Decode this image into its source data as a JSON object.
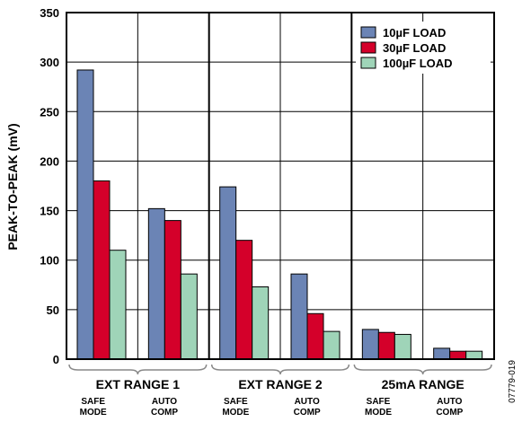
{
  "chart_data": {
    "type": "bar",
    "ylabel": "PEAK-TO-PEAK (mV)",
    "xlabel": "",
    "ylim": [
      0,
      350
    ],
    "y_ticks": [
      0,
      50,
      100,
      150,
      200,
      250,
      300,
      350
    ],
    "grid": true,
    "legend_position": "top-right",
    "groups": [
      {
        "label": "EXT RANGE 1",
        "subgroups": [
          "SAFE\nMODE",
          "AUTO\nCOMP"
        ]
      },
      {
        "label": "EXT RANGE 2",
        "subgroups": [
          "SAFE\nMODE",
          "AUTO\nCOMP"
        ]
      },
      {
        "label": "25mA RANGE",
        "subgroups": [
          "SAFE\nMODE",
          "AUTO\nCOMP"
        ]
      }
    ],
    "categories": [
      "EXT RANGE 1 SAFE MODE",
      "EXT RANGE 1 AUTO COMP",
      "EXT RANGE 2 SAFE MODE",
      "EXT RANGE 2 AUTO COMP",
      "25mA RANGE SAFE MODE",
      "25mA RANGE AUTO COMP"
    ],
    "series": [
      {
        "name": "10µF LOAD",
        "color": "#6b84b5",
        "values": [
          292,
          152,
          174,
          86,
          30,
          11
        ]
      },
      {
        "name": "30µF LOAD",
        "color": "#d4002a",
        "values": [
          180,
          140,
          120,
          46,
          27,
          8
        ]
      },
      {
        "name": "100µF LOAD",
        "color": "#9fd4b8",
        "values": [
          110,
          86,
          73,
          28,
          25,
          8
        ]
      }
    ]
  },
  "figure_id": "07779-019"
}
